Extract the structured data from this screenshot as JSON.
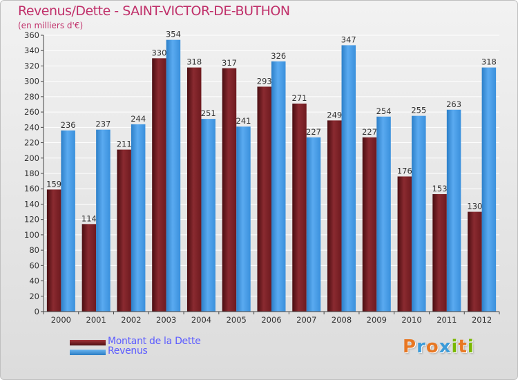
{
  "chart_data": {
    "type": "bar",
    "title": "Revenus/Dette - SAINT-VICTOR-DE-BUTHON",
    "subtitle": "(en milliers d'€)",
    "categories": [
      "2000",
      "2001",
      "2002",
      "2003",
      "2004",
      "2005",
      "2006",
      "2007",
      "2008",
      "2009",
      "2010",
      "2011",
      "2012"
    ],
    "series": [
      {
        "name": "Montant de la Dette",
        "color": "#7b1d22",
        "values": [
          159,
          114,
          211,
          330,
          318,
          317,
          293,
          271,
          249,
          227,
          176,
          153,
          130
        ]
      },
      {
        "name": "Revenus",
        "color": "#3d96e2",
        "values": [
          236,
          237,
          244,
          354,
          251,
          241,
          326,
          227,
          347,
          254,
          255,
          263,
          318
        ]
      }
    ],
    "ylim": [
      0,
      360
    ],
    "yticks": [
      0,
      20,
      40,
      60,
      80,
      100,
      120,
      140,
      160,
      180,
      200,
      220,
      240,
      260,
      280,
      300,
      320,
      340,
      360
    ],
    "grid": true,
    "legend": "bottom-left",
    "xlabel": "",
    "ylabel": ""
  },
  "logo": {
    "letters": [
      "P",
      "r",
      "o",
      "x",
      "i",
      "t",
      "i"
    ],
    "colors": [
      "#e87722",
      "#3b9bd9",
      "#e87722",
      "#3b9bd9",
      "#7ab800",
      "#e87722",
      "#7ab800"
    ]
  }
}
